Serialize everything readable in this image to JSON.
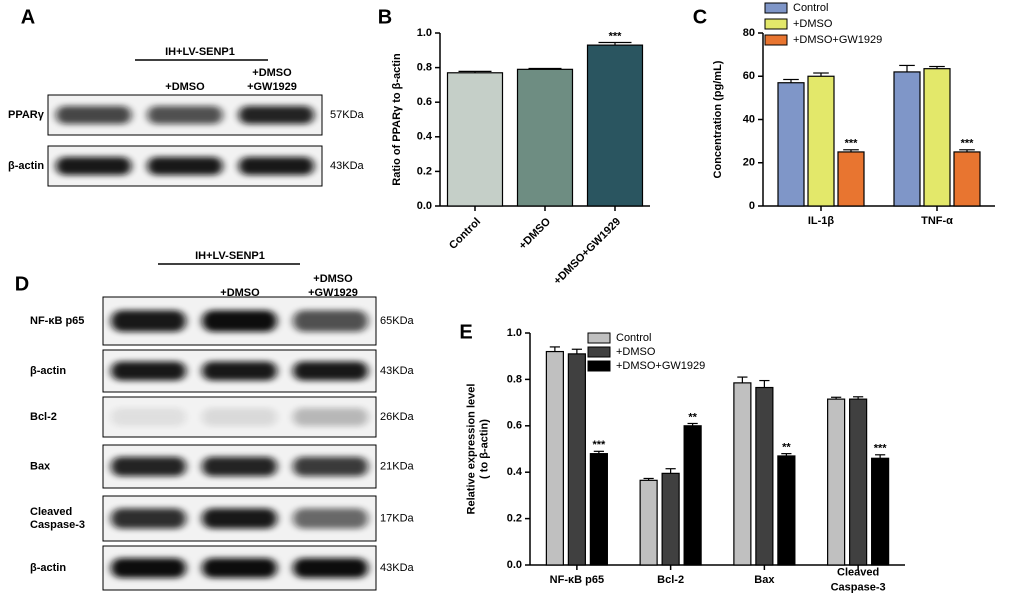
{
  "panel_labels": [
    "A",
    "B",
    "C",
    "D",
    "E"
  ],
  "blot_a": {
    "header": "IH+LV-SENP1",
    "lanes": [
      "+DMSO",
      "+DMSO\n+GW1929"
    ],
    "rows": [
      {
        "protein": "PPARγ",
        "size": "57KDa"
      },
      {
        "protein": "β-actin",
        "size": "43KDa"
      }
    ]
  },
  "blot_d": {
    "header": "IH+LV-SENP1",
    "lanes": [
      "+DMSO",
      "+DMSO\n+GW1929"
    ],
    "rows": [
      {
        "protein": "NF-κB p65",
        "size": "65KDa"
      },
      {
        "protein": "β-actin",
        "size": "43KDa"
      },
      {
        "protein": "Bcl-2",
        "size": "26KDa"
      },
      {
        "protein": "Bax",
        "size": "21KDa"
      },
      {
        "protein": "Cleaved\nCaspase-3",
        "size": "17KDa"
      },
      {
        "protein": "β-actin",
        "size": "43KDa"
      }
    ]
  },
  "chart_data": [
    {
      "type": "bar",
      "ylabel": "Ratio of PPARγ to β-actin",
      "categories": [
        "Control",
        "+DMSO",
        "+DMSO+GW1929"
      ],
      "series": [
        {
          "colors": [
            "#c5cfc8",
            "#6e8d82",
            "#2a5560"
          ],
          "values": [
            0.77,
            0.79,
            0.93
          ],
          "errors": [
            0.008,
            0.005,
            0.015
          ],
          "annotations": [
            null,
            null,
            "***"
          ]
        }
      ],
      "ylim": [
        0,
        1.0
      ],
      "yticks": [
        {
          "value": 0,
          "label": "0.0"
        },
        0.2,
        0.4,
        0.6,
        0.8,
        {
          "value": 1.0,
          "label": "1.0"
        }
      ]
    },
    {
      "type": "bar",
      "ylabel": "Concentration (pg/mL)",
      "categories": [
        "IL-1β",
        "TNF-α"
      ],
      "series": [
        {
          "name": "Control",
          "color": "#7f96c8",
          "values": [
            57,
            62
          ],
          "errors": [
            1.5,
            3
          ],
          "annotations": [
            null,
            null
          ]
        },
        {
          "name": "+DMSO",
          "color": "#e3e86a",
          "values": [
            60,
            63.5
          ],
          "errors": [
            1.5,
            1
          ],
          "annotations": [
            null,
            null
          ]
        },
        {
          "name": "+DMSO+GW1929",
          "color": "#e87530",
          "values": [
            25,
            25
          ],
          "errors": [
            1,
            1
          ],
          "annotations": [
            "***",
            "***"
          ]
        }
      ],
      "ylim": [
        0,
        80
      ],
      "yticks": [
        0,
        20,
        40,
        60,
        80
      ]
    },
    {
      "type": "bar",
      "ylabel": "Relative expression level\n( to β-actin)",
      "categories": [
        "NF-κB p65",
        "Bcl-2",
        "Bax",
        "Cleaved\nCaspase-3"
      ],
      "series": [
        {
          "name": "Control",
          "color": "#c0c0c0",
          "values": [
            0.92,
            0.365,
            0.785,
            0.715
          ],
          "errors": [
            0.02,
            0.008,
            0.025,
            0.008
          ],
          "annotations": [
            null,
            null,
            null,
            null
          ]
        },
        {
          "name": "+DMSO",
          "color": "#404040",
          "values": [
            0.91,
            0.395,
            0.765,
            0.715
          ],
          "errors": [
            0.02,
            0.02,
            0.03,
            0.01
          ],
          "annotations": [
            null,
            null,
            null,
            null
          ]
        },
        {
          "name": "+DMSO+GW1929",
          "color": "#000000",
          "values": [
            0.48,
            0.6,
            0.47,
            0.46
          ],
          "errors": [
            0.01,
            0.01,
            0.01,
            0.015
          ],
          "annotations": [
            "***",
            "**",
            "**",
            "***"
          ]
        }
      ],
      "ylim": [
        0,
        1.0
      ],
      "yticks": [
        {
          "value": 0,
          "label": "0.0"
        },
        0.2,
        0.4,
        0.6,
        0.8,
        {
          "value": 1.0,
          "label": "1.0"
        }
      ]
    }
  ]
}
